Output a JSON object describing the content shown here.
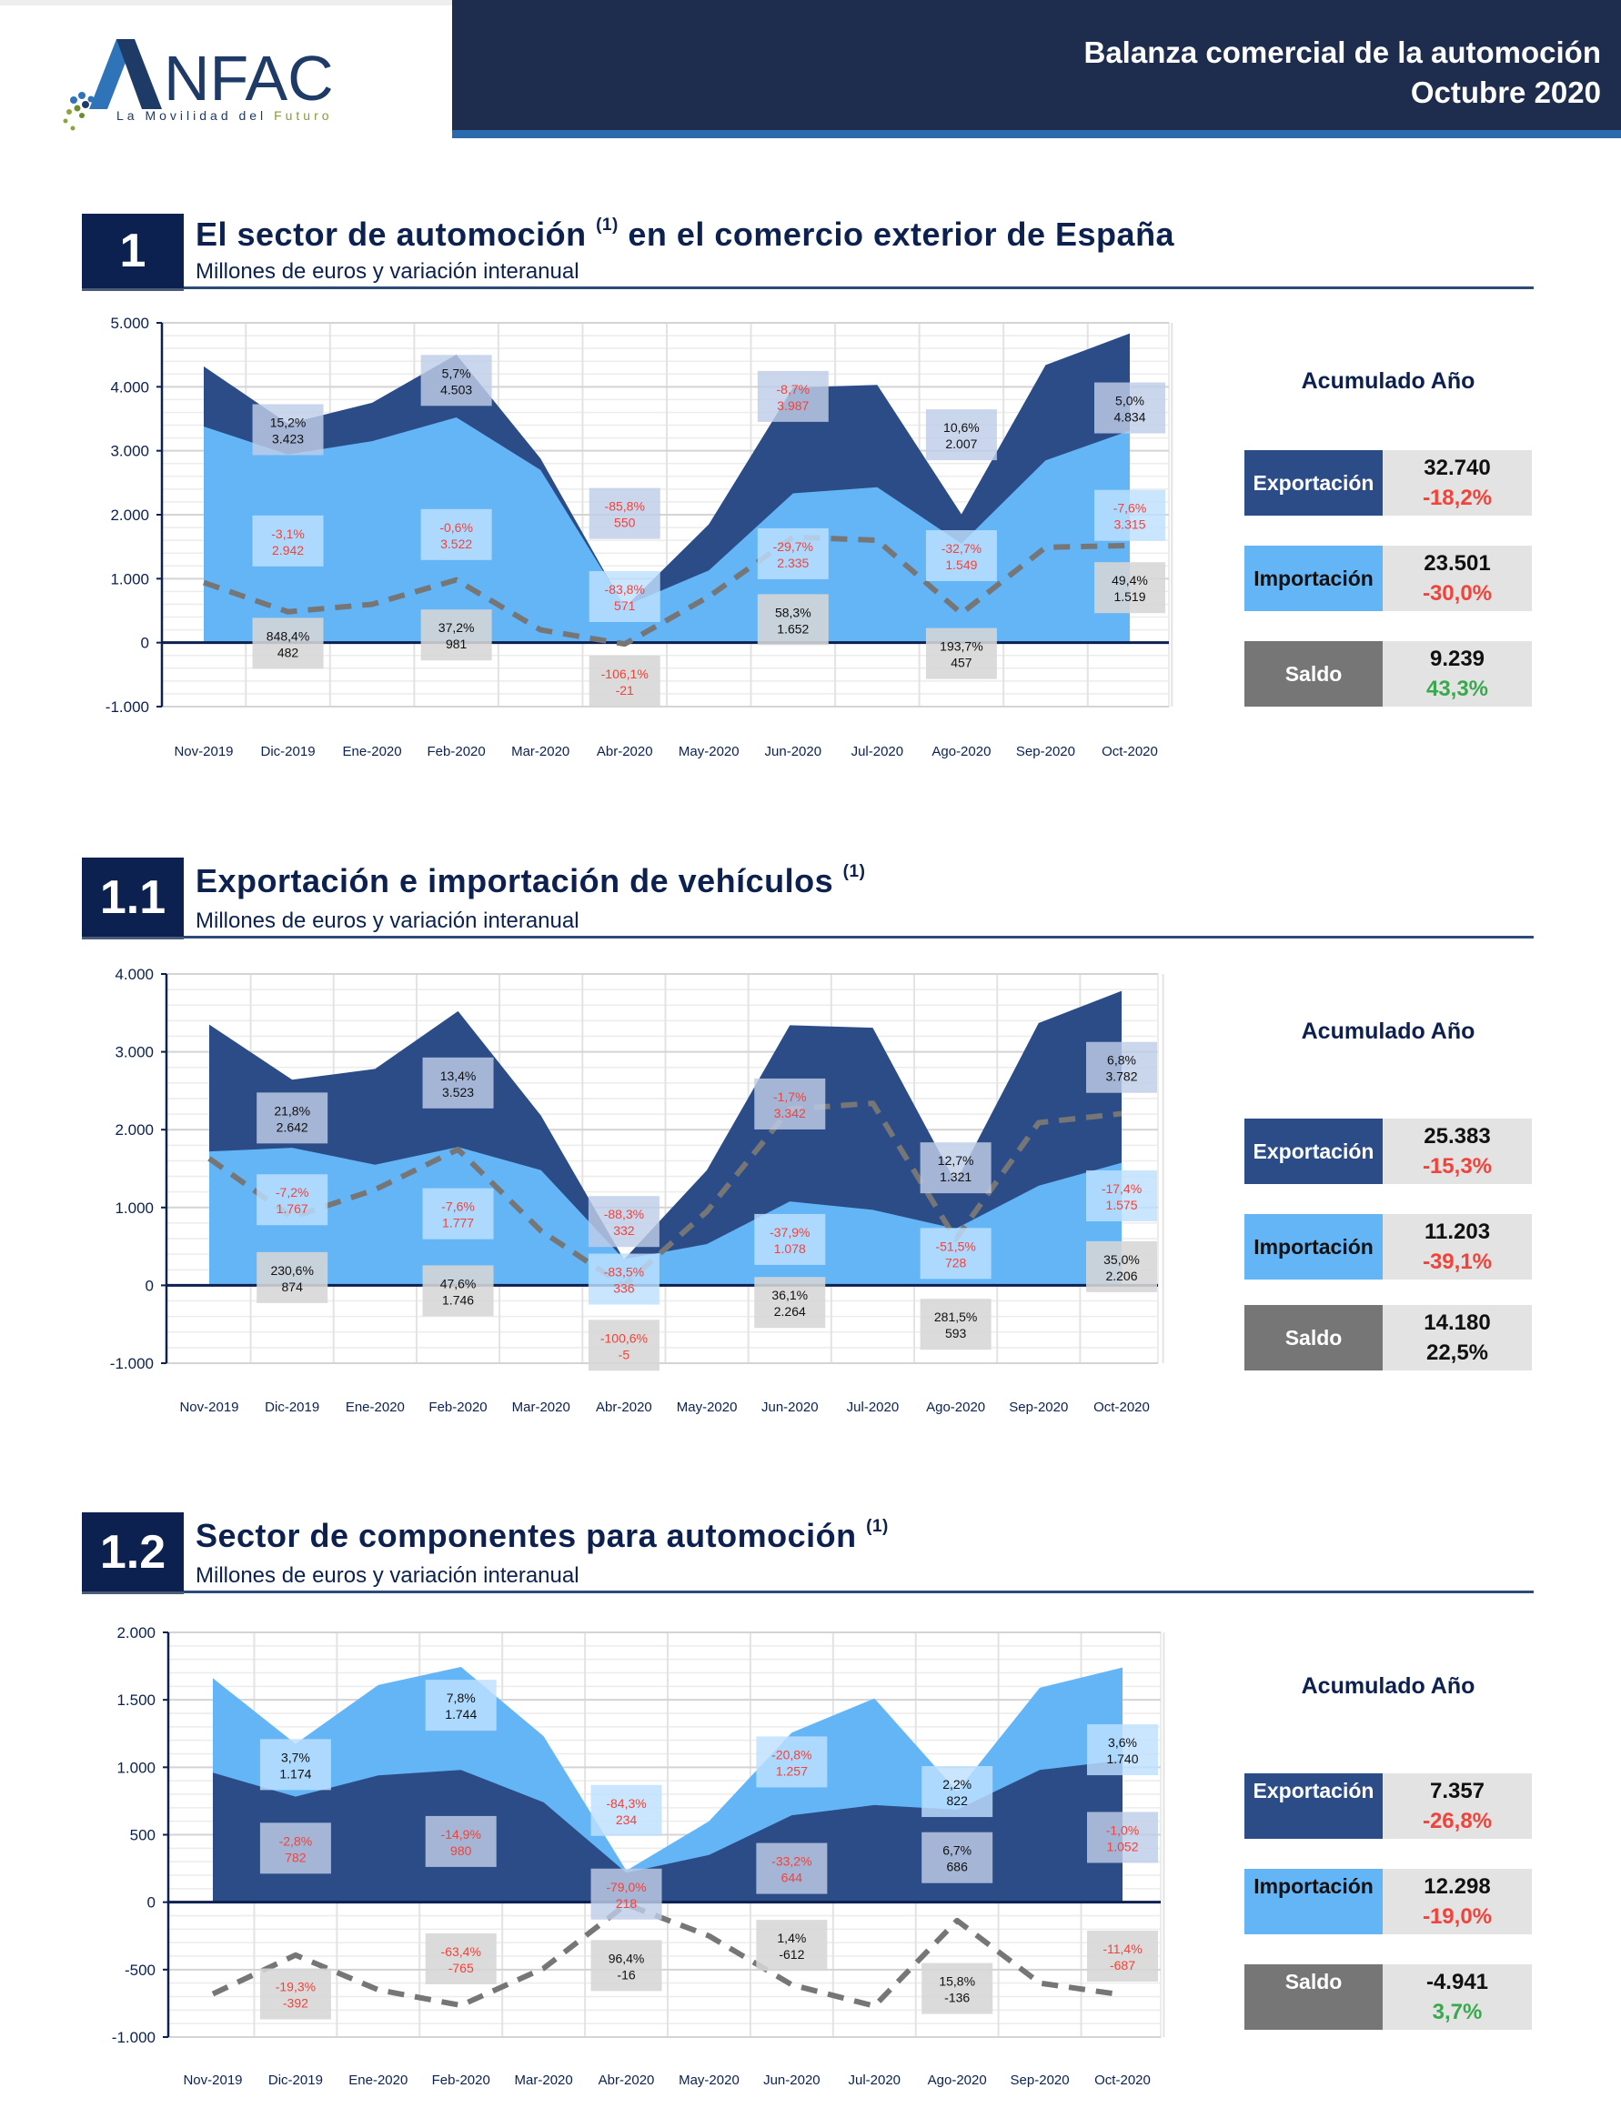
{
  "header": {
    "logo_text": "NFAC",
    "logo_tagline_1": "La Movilidad del ",
    "logo_tagline_2": "Futuro",
    "title_line1": "Balanza comercial de la automoción",
    "title_line2": "Octubre 2020"
  },
  "colors": {
    "export": "#2c4c87",
    "import": "#64b5f6",
    "saldo": "#767676",
    "negative": "#f2433a",
    "positive": "#3aa94e",
    "navy": "#0c2150"
  },
  "sections": [
    {
      "number": "1",
      "title": "El sector de automoción",
      "title_sup": "(1)",
      "title_rest": " en el comercio exterior de España",
      "subtitle": "Millones de euros y variación interanual",
      "accum": {
        "title": "Acumulado Año",
        "rows": [
          {
            "label": "Exportación",
            "value": "32.740",
            "change": "-18,2%",
            "change_sign": "neg"
          },
          {
            "label": "Importación",
            "value": "23.501",
            "change": "-30,0%",
            "change_sign": "neg"
          },
          {
            "label": "Saldo",
            "value": "9.239",
            "change": "43,3%",
            "change_sign": "pos"
          }
        ]
      }
    },
    {
      "number": "1.1",
      "title": "Exportación e importación de vehículos",
      "title_sup": "(1)",
      "title_rest": "",
      "subtitle": "Millones de euros y variación interanual",
      "accum": {
        "title": "Acumulado Año",
        "rows": [
          {
            "label": "Exportación",
            "value": "25.383",
            "change": "-15,3%",
            "change_sign": "neg"
          },
          {
            "label": "Importación",
            "value": "11.203",
            "change": "-39,1%",
            "change_sign": "neg"
          },
          {
            "label": "Saldo",
            "value": "14.180",
            "change": "22,5%",
            "change_sign": "dark"
          }
        ]
      }
    },
    {
      "number": "1.2",
      "title": "Sector de componentes para automoción",
      "title_sup": "(1)",
      "title_rest": "",
      "subtitle": "Millones de euros y variación interanual",
      "accum": {
        "title": "Acumulado Año",
        "rows": [
          {
            "label": "Exportación",
            "value": "7.357",
            "change": "-26,8%",
            "change_sign": "neg"
          },
          {
            "label": "Importación",
            "value": "12.298",
            "change": "-19,0%",
            "change_sign": "neg"
          },
          {
            "label": "Saldo",
            "value": "-4.941",
            "change": "3,7%",
            "change_sign": "pos"
          }
        ]
      }
    }
  ],
  "chart_data": [
    {
      "type": "area",
      "title": "El sector de automoción en el comercio exterior de España",
      "ylabel": "Millones de euros",
      "categories": [
        "Nov-2019",
        "Dic-2019",
        "Ene-2020",
        "Feb-2020",
        "Mar-2020",
        "Abr-2020",
        "May-2020",
        "Jun-2020",
        "Jul-2020",
        "Ago-2020",
        "Sep-2020",
        "Oct-2020"
      ],
      "ylim": [
        -1000,
        5000
      ],
      "yticks": [
        -1000,
        0,
        1000,
        2000,
        3000,
        4000,
        5000
      ],
      "ytick_labels": [
        "-1.000",
        "0",
        "1.000",
        "2.000",
        "3.000",
        "4.000",
        "5.000"
      ],
      "grid": true,
      "stack_order": [
        "Exportación",
        "Importación"
      ],
      "series": [
        {
          "name": "Exportación",
          "style": "area",
          "values": [
            4320,
            3423,
            3750,
            4503,
            2880,
            550,
            1850,
            3987,
            4030,
            2007,
            4340,
            4834
          ]
        },
        {
          "name": "Importación",
          "style": "area",
          "values": [
            3380,
            2942,
            3150,
            3522,
            2700,
            571,
            1130,
            2335,
            2430,
            1549,
            2850,
            3315
          ]
        },
        {
          "name": "Saldo",
          "style": "dashed-line",
          "values": [
            940,
            482,
            600,
            981,
            200,
            -21,
            720,
            1652,
            1600,
            457,
            1490,
            1519
          ]
        }
      ],
      "annotations": [
        {
          "series": "Exportación",
          "index": 1,
          "pct": "15,2%",
          "value": "3.423",
          "neg": false,
          "y": 3330
        },
        {
          "series": "Exportación",
          "index": 3,
          "pct": "5,7%",
          "value": "4.503",
          "neg": false,
          "y": 4100
        },
        {
          "series": "Exportación",
          "index": 5,
          "pct": "-85,8%",
          "value": "550",
          "neg": true,
          "y": 2020
        },
        {
          "series": "Exportación",
          "index": 7,
          "pct": "-8,7%",
          "value": "3.987",
          "neg": true,
          "y": 3850
        },
        {
          "series": "Exportación",
          "index": 9,
          "pct": "10,6%",
          "value": "2.007",
          "neg": false,
          "y": 3250
        },
        {
          "series": "Exportación",
          "index": 11,
          "pct": "5,0%",
          "value": "4.834",
          "neg": false,
          "y": 3670
        },
        {
          "series": "Importación",
          "index": 1,
          "pct": "-3,1%",
          "value": "2.942",
          "neg": true,
          "y": 1590
        },
        {
          "series": "Importación",
          "index": 3,
          "pct": "-0,6%",
          "value": "3.522",
          "neg": true,
          "y": 1690
        },
        {
          "series": "Importación",
          "index": 5,
          "pct": "-83,8%",
          "value": "571",
          "neg": true,
          "y": 720
        },
        {
          "series": "Importación",
          "index": 7,
          "pct": "-29,7%",
          "value": "2.335",
          "neg": true,
          "y": 1390
        },
        {
          "series": "Importación",
          "index": 9,
          "pct": "-32,7%",
          "value": "1.549",
          "neg": true,
          "y": 1360
        },
        {
          "series": "Importación",
          "index": 11,
          "pct": "-7,6%",
          "value": "3.315",
          "neg": true,
          "y": 1990
        },
        {
          "series": "Saldo",
          "index": 1,
          "pct": "848,4%",
          "value": "482",
          "neg": false,
          "y": -10
        },
        {
          "series": "Saldo",
          "index": 3,
          "pct": "37,2%",
          "value": "981",
          "neg": false,
          "y": 120
        },
        {
          "series": "Saldo",
          "index": 5,
          "pct": "-106,1%",
          "value": "-21",
          "neg": true,
          "y": -600
        },
        {
          "series": "Saldo",
          "index": 7,
          "pct": "58,3%",
          "value": "1.652",
          "neg": false,
          "y": 360
        },
        {
          "series": "Saldo",
          "index": 9,
          "pct": "193,7%",
          "value": "457",
          "neg": false,
          "y": -170
        },
        {
          "series": "Saldo",
          "index": 11,
          "pct": "49,4%",
          "value": "1.519",
          "neg": false,
          "y": 860
        }
      ]
    },
    {
      "type": "area",
      "title": "Exportación e importación de vehículos",
      "ylabel": "Millones de euros",
      "categories": [
        "Nov-2019",
        "Dic-2019",
        "Ene-2020",
        "Feb-2020",
        "Mar-2020",
        "Abr-2020",
        "May-2020",
        "Jun-2020",
        "Jul-2020",
        "Ago-2020",
        "Sep-2020",
        "Oct-2020"
      ],
      "ylim": [
        -1000,
        4000
      ],
      "yticks": [
        -1000,
        0,
        1000,
        2000,
        3000,
        4000
      ],
      "ytick_labels": [
        "-1.000",
        "0",
        "1.000",
        "2.000",
        "3.000",
        "4.000"
      ],
      "grid": true,
      "stack_order": [
        "Exportación",
        "Importación"
      ],
      "series": [
        {
          "name": "Exportación",
          "style": "area",
          "values": [
            3350,
            2642,
            2780,
            3523,
            2180,
            332,
            1480,
            3342,
            3310,
            1321,
            3370,
            3782
          ]
        },
        {
          "name": "Importación",
          "style": "area",
          "values": [
            1720,
            1767,
            1550,
            1777,
            1480,
            336,
            530,
            1078,
            970,
            728,
            1280,
            1575
          ]
        },
        {
          "name": "Saldo",
          "style": "dashed-line",
          "values": [
            1630,
            874,
            1230,
            1746,
            700,
            -5,
            950,
            2264,
            2340,
            593,
            2090,
            2206
          ]
        }
      ],
      "annotations": [
        {
          "series": "Exportación",
          "index": 1,
          "pct": "21,8%",
          "value": "2.642",
          "neg": false,
          "y": 2150
        },
        {
          "series": "Exportación",
          "index": 3,
          "pct": "13,4%",
          "value": "3.523",
          "neg": false,
          "y": 2600
        },
        {
          "series": "Exportación",
          "index": 5,
          "pct": "-88,3%",
          "value": "332",
          "neg": true,
          "y": 820
        },
        {
          "series": "Exportación",
          "index": 7,
          "pct": "-1,7%",
          "value": "3.342",
          "neg": true,
          "y": 2330
        },
        {
          "series": "Exportación",
          "index": 9,
          "pct": "12,7%",
          "value": "1.321",
          "neg": false,
          "y": 1510
        },
        {
          "series": "Exportación",
          "index": 11,
          "pct": "6,8%",
          "value": "3.782",
          "neg": false,
          "y": 2800
        },
        {
          "series": "Importación",
          "index": 1,
          "pct": "-7,2%",
          "value": "1.767",
          "neg": true,
          "y": 1100
        },
        {
          "series": "Importación",
          "index": 3,
          "pct": "-7,6%",
          "value": "1.777",
          "neg": true,
          "y": 920
        },
        {
          "series": "Importación",
          "index": 5,
          "pct": "-83,5%",
          "value": "336",
          "neg": true,
          "y": 80
        },
        {
          "series": "Importación",
          "index": 7,
          "pct": "-37,9%",
          "value": "1.078",
          "neg": true,
          "y": 590
        },
        {
          "series": "Importación",
          "index": 9,
          "pct": "-51,5%",
          "value": "728",
          "neg": true,
          "y": 410
        },
        {
          "series": "Importación",
          "index": 11,
          "pct": "-17,4%",
          "value": "1.575",
          "neg": true,
          "y": 1150
        },
        {
          "series": "Saldo",
          "index": 1,
          "pct": "230,6%",
          "value": "874",
          "neg": false,
          "y": 100
        },
        {
          "series": "Saldo",
          "index": 3,
          "pct": "47,6%",
          "value": "1.746",
          "neg": false,
          "y": -70
        },
        {
          "series": "Saldo",
          "index": 5,
          "pct": "-100,6%",
          "value": "-5",
          "neg": true,
          "y": -770
        },
        {
          "series": "Saldo",
          "index": 7,
          "pct": "36,1%",
          "value": "2.264",
          "neg": false,
          "y": -220
        },
        {
          "series": "Saldo",
          "index": 9,
          "pct": "281,5%",
          "value": "593",
          "neg": false,
          "y": -500
        },
        {
          "series": "Saldo",
          "index": 11,
          "pct": "35,0%",
          "value": "2.206",
          "neg": false,
          "y": 240
        }
      ]
    },
    {
      "type": "area",
      "title": "Sector de componentes para automoción",
      "ylabel": "Millones de euros",
      "categories": [
        "Nov-2019",
        "Dic-2019",
        "Ene-2020",
        "Feb-2020",
        "Mar-2020",
        "Abr-2020",
        "May-2020",
        "Jun-2020",
        "Jul-2020",
        "Ago-2020",
        "Sep-2020",
        "Oct-2020"
      ],
      "ylim": [
        -1000,
        2000
      ],
      "yticks": [
        -1000,
        -500,
        0,
        500,
        1000,
        1500,
        2000
      ],
      "ytick_labels": [
        "-1.000",
        "-500",
        "0",
        "500",
        "1.000",
        "1.500",
        "2.000"
      ],
      "grid": true,
      "stack_order": [
        "Importación",
        "Exportación"
      ],
      "series": [
        {
          "name": "Importación",
          "style": "area",
          "values": [
            1660,
            1174,
            1610,
            1744,
            1230,
            234,
            600,
            1257,
            1510,
            822,
            1590,
            1740
          ]
        },
        {
          "name": "Exportación",
          "style": "area",
          "values": [
            960,
            782,
            940,
            980,
            740,
            218,
            350,
            644,
            720,
            686,
            980,
            1052
          ]
        },
        {
          "name": "Saldo",
          "style": "dashed-line",
          "values": [
            -680,
            -392,
            -650,
            -765,
            -490,
            -16,
            -250,
            -612,
            -770,
            -136,
            -600,
            -687
          ]
        }
      ],
      "annotations": [
        {
          "series": "Importación",
          "index": 1,
          "pct": "3,7%",
          "value": "1.174",
          "neg": false,
          "y": 1020
        },
        {
          "series": "Importación",
          "index": 3,
          "pct": "7,8%",
          "value": "1.744",
          "neg": false,
          "y": 1460
        },
        {
          "series": "Importación",
          "index": 5,
          "pct": "-84,3%",
          "value": "234",
          "neg": true,
          "y": 680
        },
        {
          "series": "Importación",
          "index": 7,
          "pct": "-20,8%",
          "value": "1.257",
          "neg": true,
          "y": 1040
        },
        {
          "series": "Importación",
          "index": 9,
          "pct": "2,2%",
          "value": "822",
          "neg": false,
          "y": 820
        },
        {
          "series": "Importación",
          "index": 11,
          "pct": "3,6%",
          "value": "1.740",
          "neg": false,
          "y": 1130
        },
        {
          "series": "Exportación",
          "index": 1,
          "pct": "-2,8%",
          "value": "782",
          "neg": true,
          "y": 400
        },
        {
          "series": "Exportación",
          "index": 3,
          "pct": "-14,9%",
          "value": "980",
          "neg": true,
          "y": 450
        },
        {
          "series": "Exportación",
          "index": 5,
          "pct": "-79,0%",
          "value": "218",
          "neg": true,
          "y": 60
        },
        {
          "series": "Exportación",
          "index": 7,
          "pct": "-33,2%",
          "value": "644",
          "neg": true,
          "y": 250
        },
        {
          "series": "Exportación",
          "index": 9,
          "pct": "6,7%",
          "value": "686",
          "neg": false,
          "y": 330
        },
        {
          "series": "Exportación",
          "index": 11,
          "pct": "-1,0%",
          "value": "1.052",
          "neg": true,
          "y": 480
        },
        {
          "series": "Saldo",
          "index": 1,
          "pct": "-19,3%",
          "value": "-392",
          "neg": true,
          "y": -680
        },
        {
          "series": "Saldo",
          "index": 3,
          "pct": "-63,4%",
          "value": "-765",
          "neg": true,
          "y": -420
        },
        {
          "series": "Saldo",
          "index": 5,
          "pct": "96,4%",
          "value": "-16",
          "neg": false,
          "y": -470
        },
        {
          "series": "Saldo",
          "index": 7,
          "pct": "1,4%",
          "value": "-612",
          "neg": false,
          "y": -320
        },
        {
          "series": "Saldo",
          "index": 9,
          "pct": "15,8%",
          "value": "-136",
          "neg": false,
          "y": -640
        },
        {
          "series": "Saldo",
          "index": 11,
          "pct": "-11,4%",
          "value": "-687",
          "neg": true,
          "y": -400
        }
      ]
    }
  ]
}
